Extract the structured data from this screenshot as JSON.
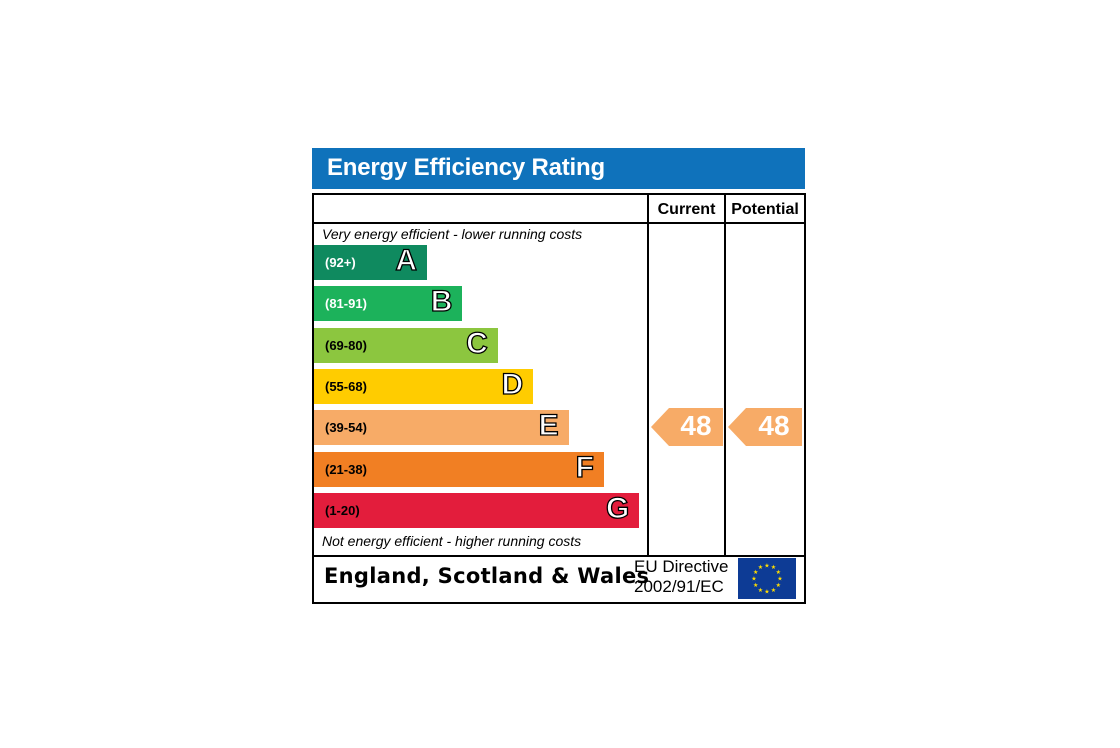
{
  "chart_data": {
    "type": "bar",
    "title": "Energy Efficiency Rating",
    "columns": [
      "Current",
      "Potential"
    ],
    "top_caption": "Very energy efficient - lower running costs",
    "bottom_caption": "Not energy efficient - higher running costs",
    "bands": [
      {
        "letter": "A",
        "range": "(92+)",
        "color": "#0f8a5f",
        "range_color": "#ffffff"
      },
      {
        "letter": "B",
        "range": "(81-91)",
        "color": "#1cb25b",
        "range_color": "#ffffff"
      },
      {
        "letter": "C",
        "range": "(69-80)",
        "color": "#8cc63f",
        "range_color": "#000000"
      },
      {
        "letter": "D",
        "range": "(55-68)",
        "color": "#ffcc00",
        "range_color": "#000000"
      },
      {
        "letter": "E",
        "range": "(39-54)",
        "color": "#f7ab67",
        "range_color": "#000000"
      },
      {
        "letter": "F",
        "range": "(21-38)",
        "color": "#f17f23",
        "range_color": "#000000"
      },
      {
        "letter": "G",
        "range": "(1-20)",
        "color": "#e31d3c",
        "range_color": "#000000"
      }
    ],
    "current": {
      "value": 48,
      "band": "E",
      "color": "#f7ab67"
    },
    "potential": {
      "value": 48,
      "band": "E",
      "color": "#f7ab67"
    }
  },
  "footer": {
    "region": "England, Scotland & Wales",
    "directive_line1": "EU Directive",
    "directive_line2": "2002/91/EC"
  },
  "icons": {
    "flag": "eu-flag-icon"
  }
}
